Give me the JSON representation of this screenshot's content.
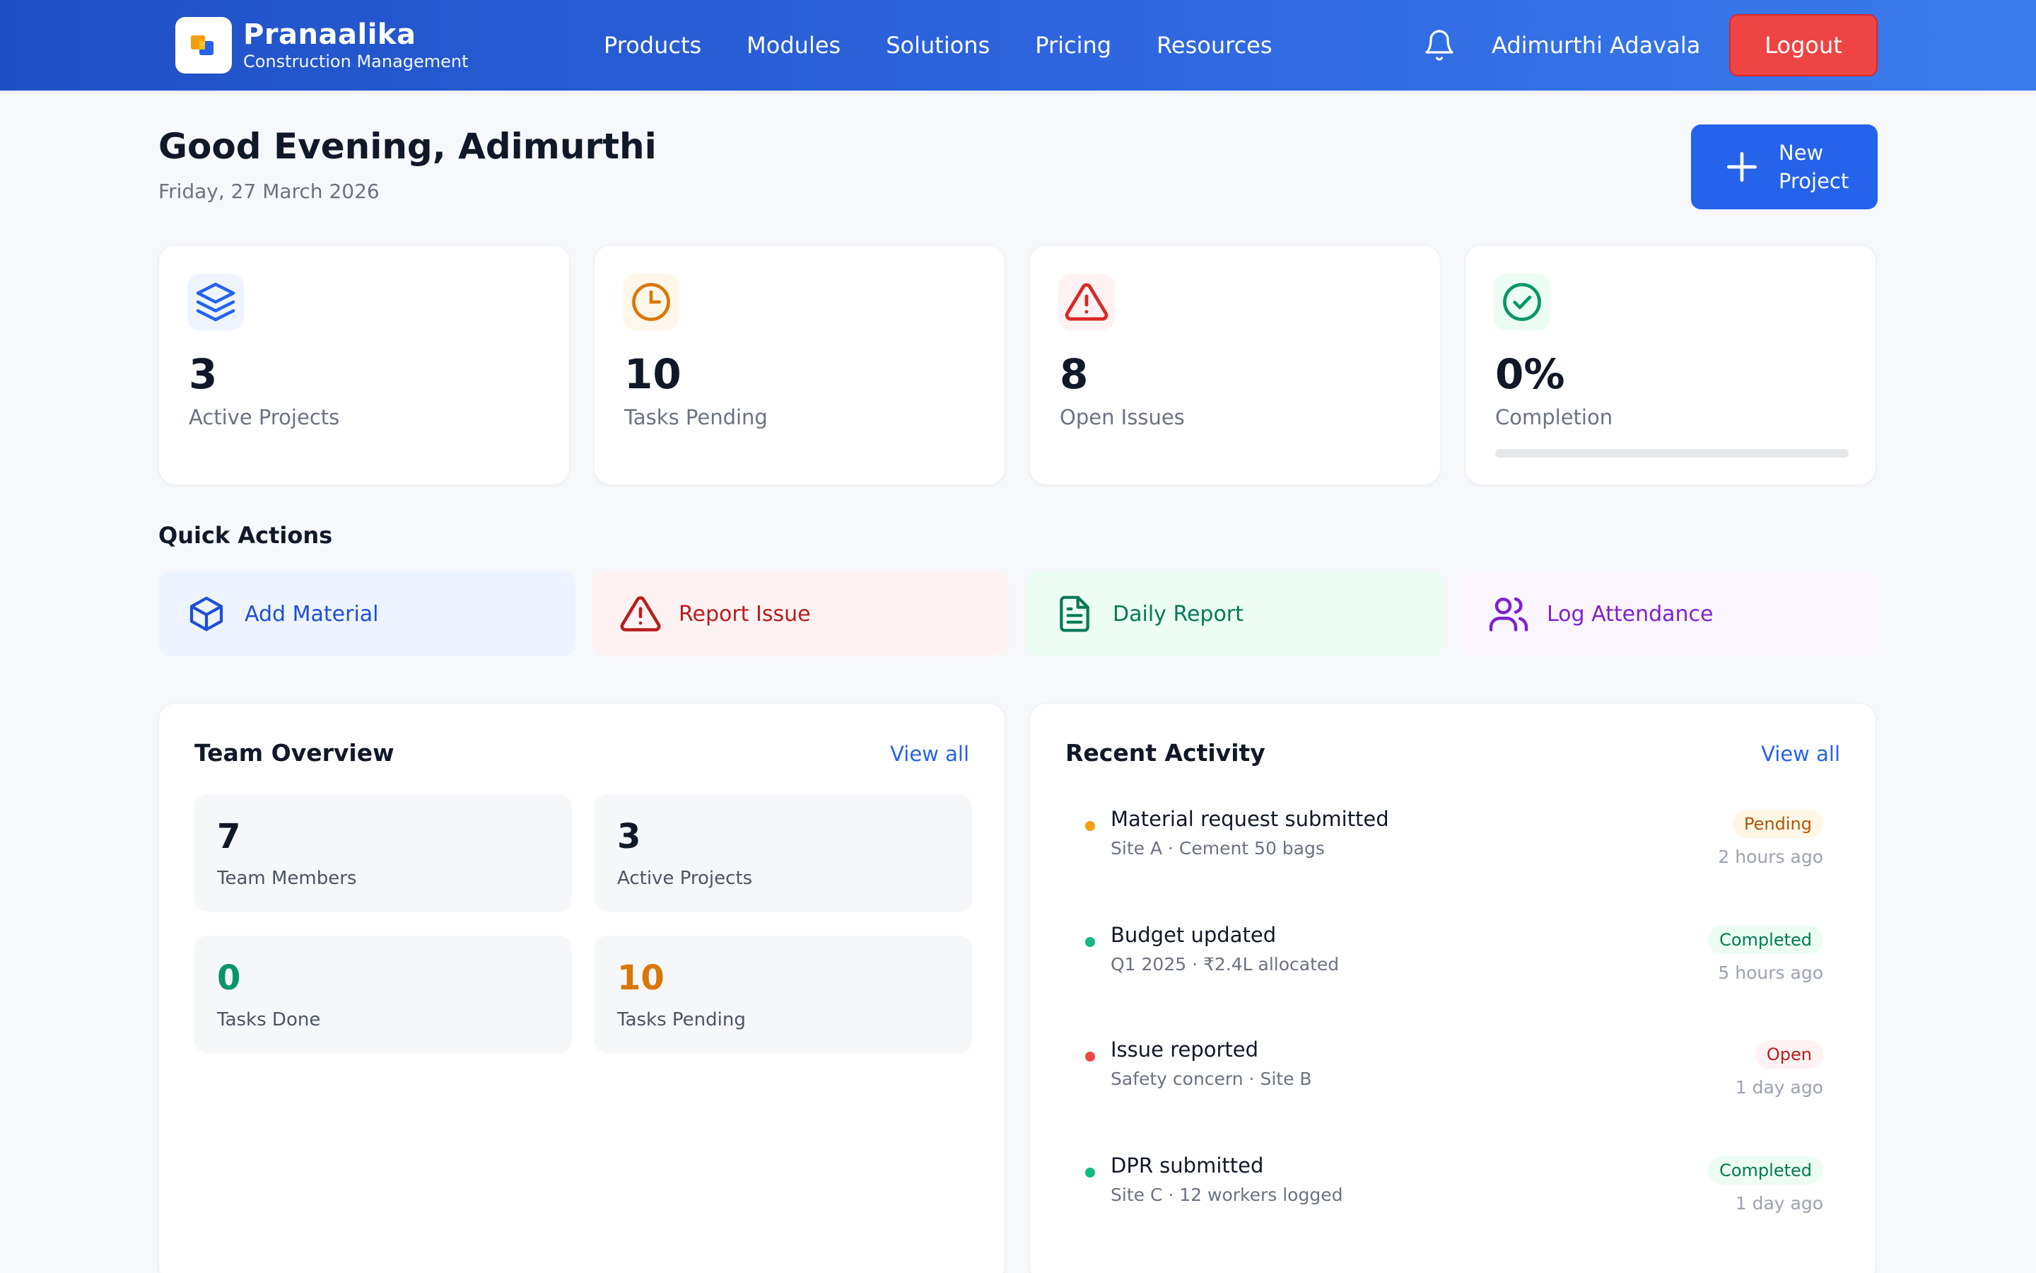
{
  "brand": {
    "name": "Pranaalika",
    "subtitle": "Construction Management"
  },
  "nav": {
    "links": [
      "Products",
      "Modules",
      "Solutions",
      "Pricing",
      "Resources"
    ]
  },
  "user": {
    "name": "Adimurthi Adavala",
    "logout_label": "Logout"
  },
  "header": {
    "greeting": "Good Evening, Adimurthi",
    "date": "Friday, 27 March 2026",
    "new_project_label": "New Project"
  },
  "stats": [
    {
      "value": "3",
      "label": "Active Projects",
      "icon": "layers-icon",
      "color": "#2563eb"
    },
    {
      "value": "10",
      "label": "Tasks Pending",
      "icon": "clock-icon",
      "color": "#d97706"
    },
    {
      "value": "8",
      "label": "Open Issues",
      "icon": "alert-triangle-icon",
      "color": "#dc2626"
    },
    {
      "value": "0%",
      "label": "Completion",
      "icon": "check-circle-icon",
      "color": "#16a34a",
      "progress": 0
    }
  ],
  "quick_actions": {
    "title": "Quick Actions",
    "items": [
      {
        "label": "Add Material",
        "icon": "box-icon",
        "color": "#1d4ed8",
        "bg": "#eef4ff"
      },
      {
        "label": "Report Issue",
        "icon": "alert-triangle-icon",
        "color": "#b91c1c",
        "bg": "#fef2f2"
      },
      {
        "label": "Daily Report",
        "icon": "file-text-icon",
        "color": "#047857",
        "bg": "#ecfdf3"
      },
      {
        "label": "Log Attendance",
        "icon": "users-icon",
        "color": "#7e22ce",
        "bg": "#faf5ff"
      }
    ]
  },
  "team_overview": {
    "title": "Team Overview",
    "view_all": "View all",
    "tiles": [
      {
        "value": "7",
        "label": "Team Members",
        "color": "#111827"
      },
      {
        "value": "3",
        "label": "Active Projects",
        "color": "#111827"
      },
      {
        "value": "0",
        "label": "Tasks Done",
        "color": "#059669"
      },
      {
        "value": "10",
        "label": "Tasks Pending",
        "color": "#d97706"
      }
    ]
  },
  "recent_activity": {
    "title": "Recent Activity",
    "view_all": "View all",
    "items": [
      {
        "title": "Material request submitted",
        "subtitle": "Site A · Cement 50 bags",
        "status": "Pending",
        "time": "2 hours ago",
        "dot_color": "#f59e0b",
        "badge_bg": "#fef7e6",
        "badge_color": "#b45309"
      },
      {
        "title": "Budget updated",
        "subtitle": "Q1 2025 · ₹2.4L allocated",
        "status": "Completed",
        "time": "5 hours ago",
        "dot_color": "#10b981",
        "badge_bg": "#ecfdf3",
        "badge_color": "#047857"
      },
      {
        "title": "Issue reported",
        "subtitle": "Safety concern · Site B",
        "status": "Open",
        "time": "1 day ago",
        "dot_color": "#ef4444",
        "badge_bg": "#fef2f2",
        "badge_color": "#b91c1c"
      },
      {
        "title": "DPR submitted",
        "subtitle": "Site C · 12 workers logged",
        "status": "Completed",
        "time": "1 day ago",
        "dot_color": "#10b981",
        "badge_bg": "#ecfdf3",
        "badge_color": "#047857"
      }
    ]
  }
}
